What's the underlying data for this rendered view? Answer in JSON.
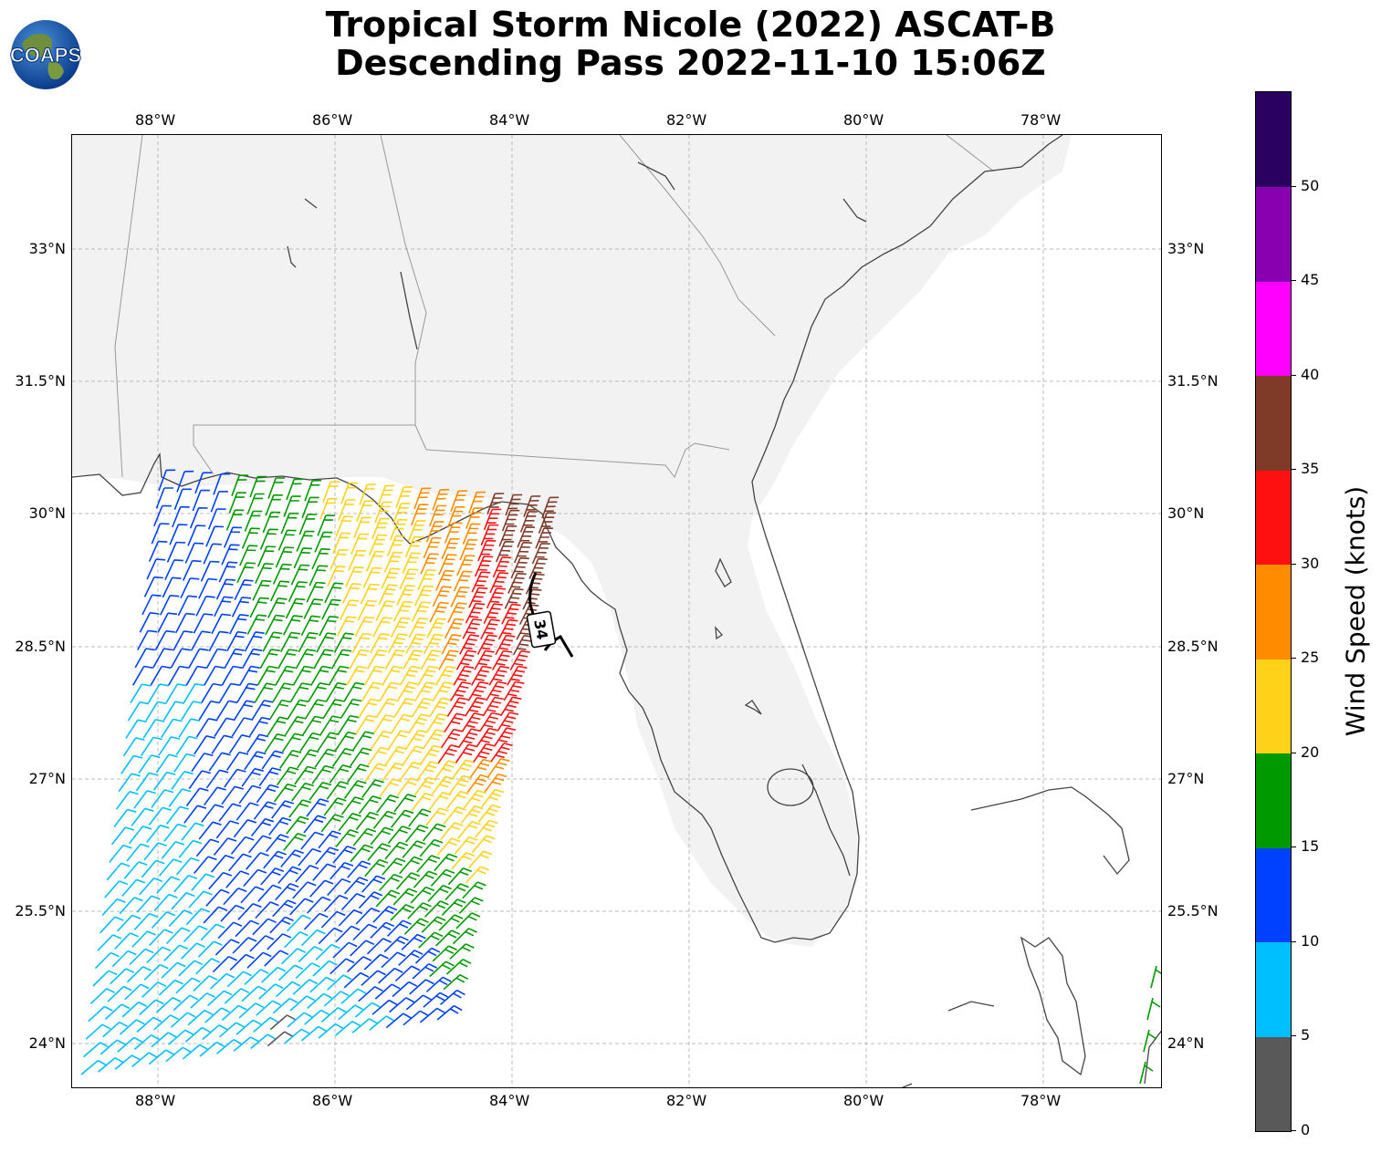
{
  "title": {
    "line1": "Tropical Storm Nicole (2022) ASCAT-B",
    "line2": "Descending Pass 2022-11-10 15:06Z"
  },
  "logo": {
    "text": "COAPS"
  },
  "map": {
    "lon_ticks": [
      "88°W",
      "86°W",
      "84°W",
      "82°W",
      "80°W",
      "78°W"
    ],
    "lat_ticks": [
      "33°N",
      "31.5°N",
      "30°N",
      "28.5°N",
      "27°N",
      "25.5°N",
      "24°N"
    ],
    "contour_label": "34",
    "colors": {
      "coast": "#444444",
      "state_border": "#999999",
      "grid": "#bbbbbb",
      "land_shade": "#f2f2f2"
    }
  },
  "colorbar": {
    "title": "Wind Speed (knots)",
    "tick_labels": [
      "0",
      "5",
      "10",
      "15",
      "20",
      "25",
      "30",
      "35",
      "40",
      "45",
      "50"
    ],
    "bins": [
      {
        "min": 0,
        "max": 5,
        "color": "#595959"
      },
      {
        "min": 5,
        "max": 10,
        "color": "#00bfff"
      },
      {
        "min": 10,
        "max": 15,
        "color": "#0040ff"
      },
      {
        "min": 15,
        "max": 20,
        "color": "#009900"
      },
      {
        "min": 20,
        "max": 25,
        "color": "#ffd21a"
      },
      {
        "min": 25,
        "max": 30,
        "color": "#ff8c00"
      },
      {
        "min": 30,
        "max": 35,
        "color": "#ff1010"
      },
      {
        "min": 35,
        "max": 40,
        "color": "#7f3b28"
      },
      {
        "min": 40,
        "max": 45,
        "color": "#ff00ff"
      },
      {
        "min": 45,
        "max": 50,
        "color": "#8800b0"
      },
      {
        "min": 50,
        "max": 55,
        "color": "#2a0060"
      }
    ]
  }
}
